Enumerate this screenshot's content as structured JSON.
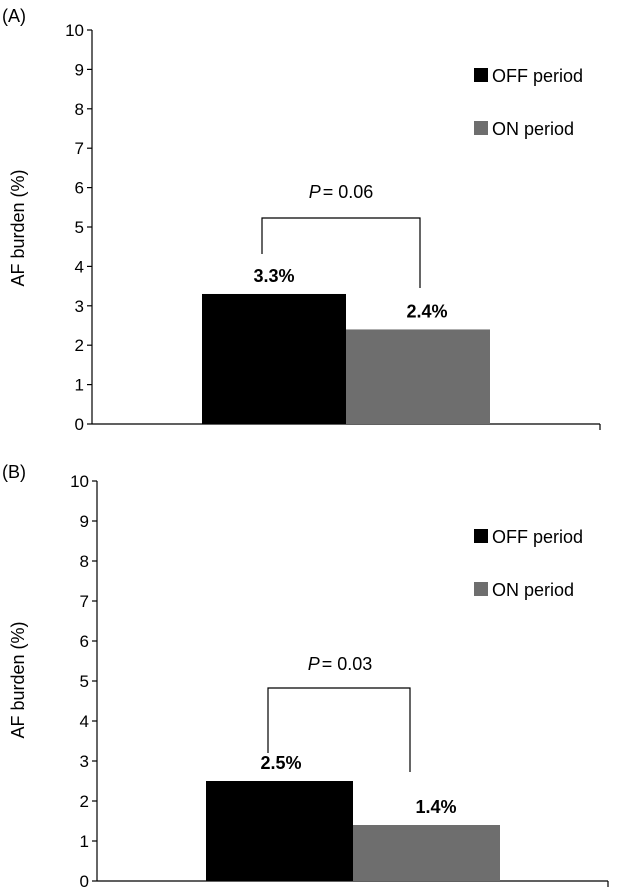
{
  "chart_data": [
    {
      "type": "bar",
      "panel_label": "(A)",
      "ylabel": "AF burden (%)",
      "ylim": [
        0,
        10
      ],
      "yticks": [
        "0",
        "1",
        "2",
        "3",
        "4",
        "5",
        "6",
        "7",
        "8",
        "9",
        "10"
      ],
      "legend_position": "top-right",
      "series": [
        {
          "name": "OFF period",
          "values": [
            3.3
          ],
          "label": "3.3%",
          "color": "#000000"
        },
        {
          "name": "ON period",
          "values": [
            2.4
          ],
          "label": "2.4%",
          "color": "#6e6e6e"
        }
      ],
      "annotation": {
        "p_symbol": "P",
        "p_text": "= 0.06"
      }
    },
    {
      "type": "bar",
      "panel_label": "(B)",
      "ylabel": "AF burden (%)",
      "ylim": [
        0,
        10
      ],
      "yticks": [
        "0",
        "1",
        "2",
        "3",
        "4",
        "5",
        "6",
        "7",
        "8",
        "9",
        "10"
      ],
      "legend_position": "top-right",
      "series": [
        {
          "name": "OFF period",
          "values": [
            2.5
          ],
          "label": "2.5%",
          "color": "#000000"
        },
        {
          "name": "ON period",
          "values": [
            1.4
          ],
          "label": "1.4%",
          "color": "#6e6e6e"
        }
      ],
      "annotation": {
        "p_symbol": "P",
        "p_text": "= 0.03"
      }
    }
  ]
}
